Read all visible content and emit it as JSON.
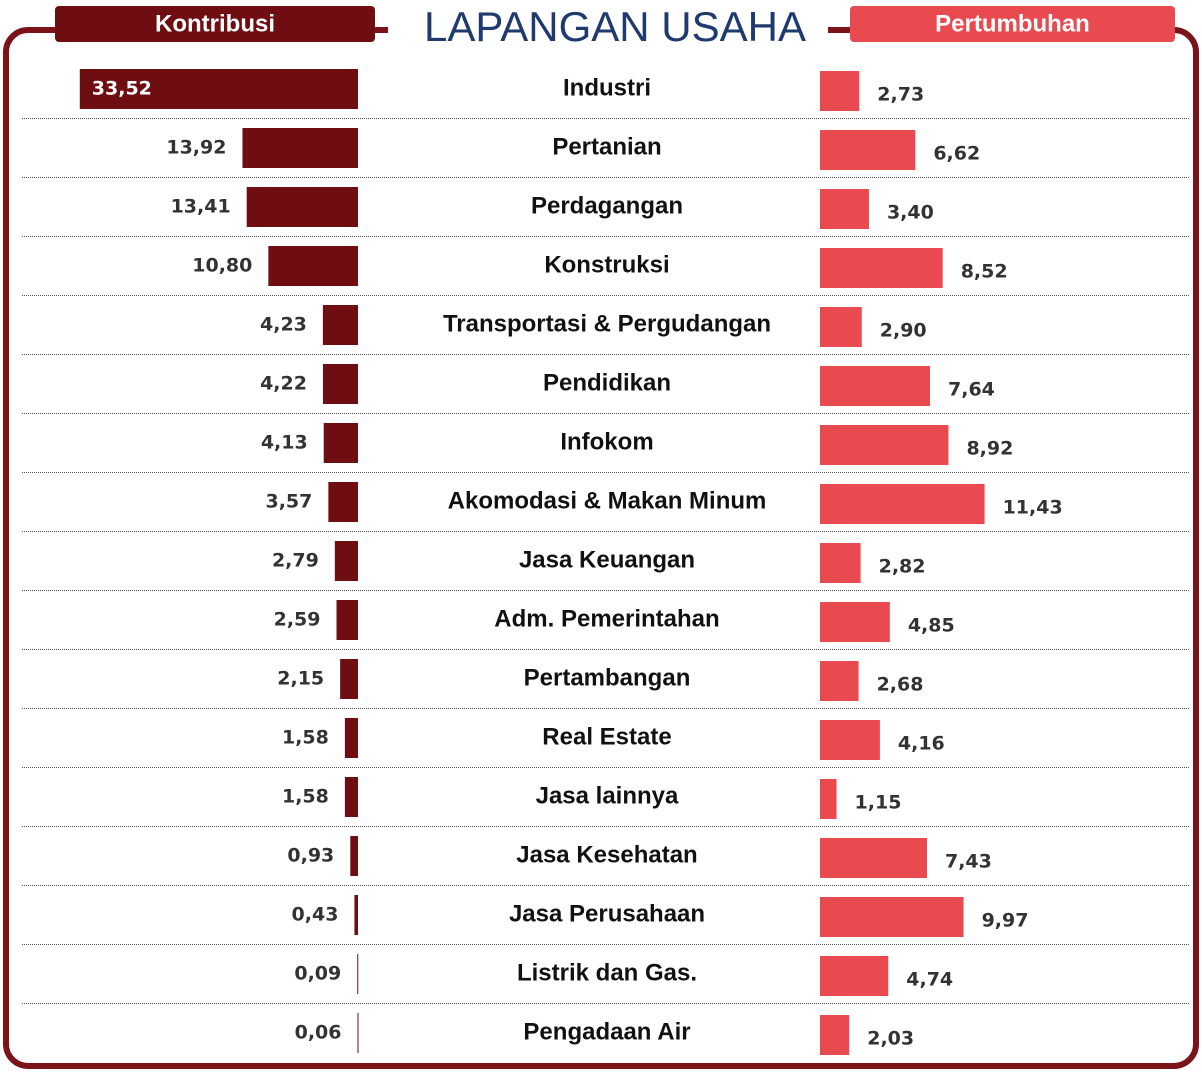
{
  "chart_data": {
    "type": "butterfly_bar",
    "title": "LAPANGAN USAHA",
    "categories": [
      "Industri",
      "Pertanian",
      "Perdagangan",
      "Konstruksi",
      "Transportasi & Pergudangan",
      "Pendidikan",
      "Infokom",
      "Akomodasi & Makan Minum",
      "Jasa Keuangan",
      "Adm. Pemerintahan",
      "Pertambangan",
      "Real Estate",
      "Jasa lainnya",
      "Jasa Kesehatan",
      "Jasa Perusahaan",
      "Listrik dan Gas.",
      "Pengadaan Air"
    ],
    "series": [
      {
        "name": "Kontribusi",
        "color": "#6e0e12",
        "values": [
          33.52,
          13.92,
          13.41,
          10.8,
          4.23,
          4.22,
          4.13,
          3.57,
          2.79,
          2.59,
          2.15,
          1.58,
          1.58,
          0.93,
          0.43,
          0.09,
          0.06
        ],
        "value_labels": [
          "33,52",
          "13,92",
          "13,41",
          "10,80",
          "4,23",
          "4,22",
          "4,13",
          "3,57",
          "2,79",
          "2,59",
          "2,15",
          "1,58",
          "1,58",
          "0,93",
          "0,43",
          "0,09",
          "0,06"
        ]
      },
      {
        "name": "Pertumbuhan",
        "color": "#e84a50",
        "values": [
          2.73,
          6.62,
          3.4,
          8.52,
          2.9,
          7.64,
          8.92,
          11.43,
          2.82,
          4.85,
          2.68,
          4.16,
          1.15,
          7.43,
          9.97,
          4.74,
          2.03
        ],
        "value_labels": [
          "2,73",
          "6,62",
          "3,40",
          "8,52",
          "2,90",
          "7,64",
          "8,92",
          "11,43",
          "2,82",
          "4,85",
          "2,68",
          "4,16",
          "1,15",
          "7,43",
          "9,97",
          "4,74",
          "2,03"
        ]
      }
    ]
  }
}
